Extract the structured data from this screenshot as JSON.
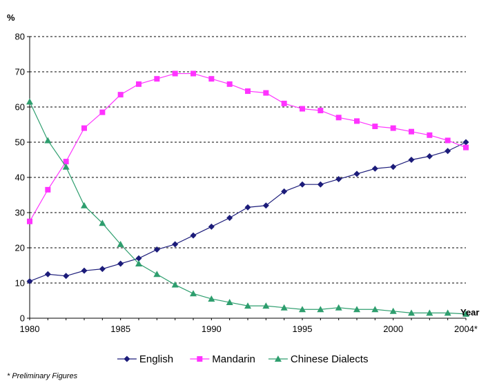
{
  "chart_data": {
    "type": "line",
    "ylabel": "%",
    "xlabel": "Year",
    "footnote": "* Preliminary Figures",
    "ylim": [
      0,
      80
    ],
    "yticks": [
      0,
      10,
      20,
      30,
      40,
      50,
      60,
      70,
      80
    ],
    "xlim": [
      1980,
      2004
    ],
    "xtick_values": [
      1980,
      1985,
      1990,
      1995,
      2000,
      2004
    ],
    "xtick_labels": [
      "1980",
      "1985",
      "1990",
      "1995",
      "2000",
      "2004*"
    ],
    "grid": "horizontal dashed",
    "legend_position": "bottom",
    "x": [
      1980,
      1981,
      1982,
      1983,
      1984,
      1985,
      1986,
      1987,
      1988,
      1989,
      1990,
      1991,
      1992,
      1993,
      1994,
      1995,
      1996,
      1997,
      1998,
      1999,
      2000,
      2001,
      2002,
      2003,
      2004
    ],
    "series": [
      {
        "name": "English",
        "color": "#1c1c7a",
        "marker": "diamond",
        "values": [
          10.5,
          12.5,
          12,
          13.5,
          14,
          15.5,
          17,
          19.5,
          21,
          23.5,
          26,
          28.5,
          31.5,
          32,
          36,
          38,
          38,
          39.5,
          41,
          42.5,
          43,
          45,
          46,
          47.5,
          50
        ]
      },
      {
        "name": "Mandarin",
        "color": "#ff33ff",
        "marker": "square",
        "values": [
          27.5,
          36.5,
          44.5,
          54,
          58.5,
          63.5,
          66.5,
          68,
          69.5,
          69.5,
          68,
          66.5,
          64.5,
          64,
          61,
          59.5,
          59,
          57,
          56,
          54.5,
          54,
          53,
          52,
          50.5,
          48.5
        ]
      },
      {
        "name": "Chinese Dialects",
        "color": "#2e9e6e",
        "marker": "triangle",
        "values": [
          61.5,
          50.5,
          43,
          32,
          27,
          21,
          15.5,
          12.5,
          9.5,
          7,
          5.5,
          4.5,
          3.5,
          3.5,
          3,
          2.5,
          2.5,
          3,
          2.5,
          2.5,
          2,
          1.5,
          1.5,
          1.5,
          1.2
        ]
      }
    ]
  }
}
